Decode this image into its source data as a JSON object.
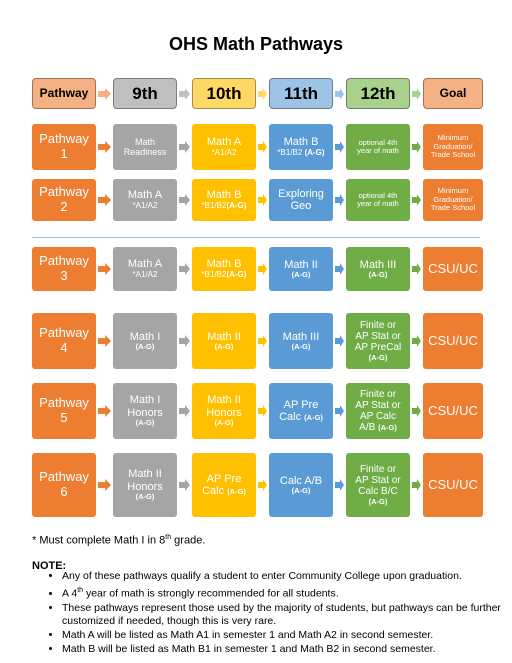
{
  "title": "OHS Math Pathways",
  "header": [
    "Pathway",
    "9th",
    "10th",
    "11th",
    "12th",
    "Goal"
  ],
  "rows": [
    {
      "pathway": [
        "Pathway",
        "1"
      ],
      "c9": {
        "main": "Math",
        "main2": "Readiness",
        "sub": "",
        "ag": ""
      },
      "c10": {
        "main": "Math A",
        "sub": "*A1/A2",
        "ag": ""
      },
      "c11": {
        "main": "Math B",
        "sub": "*B1/B2",
        "ag": "(A-G)"
      },
      "c12": {
        "main": "optional 4th",
        "main2": "year of math",
        "ag": ""
      },
      "goal": [
        "Minimum",
        "Graduation/",
        "Trade School"
      ]
    },
    {
      "pathway": [
        "Pathway",
        "2"
      ],
      "c9": {
        "main": "Math A",
        "main2": "",
        "sub": "*A1/A2",
        "ag": ""
      },
      "c10": {
        "main": "Math B",
        "sub": "*B1/B2",
        "ag": "(A-G)"
      },
      "c11": {
        "main": "Exploring",
        "main2": "Geo",
        "sub": "",
        "ag": ""
      },
      "c12": {
        "main": "optional 4th",
        "main2": "year of math",
        "ag": ""
      },
      "goal": [
        "Minimum",
        "Graduation/",
        "Trade School"
      ]
    },
    {
      "pathway": [
        "Pathway",
        "3"
      ],
      "c9": {
        "main": "Math A",
        "main2": "",
        "sub": "*A1/A2",
        "ag": ""
      },
      "c10": {
        "main": "Math B",
        "sub": "*B1/B2",
        "ag": "(A-G)"
      },
      "c11": {
        "main": "Math II",
        "ag": "(A-G)"
      },
      "c12": {
        "main": "Math III",
        "ag": "(A-G)"
      },
      "goal": [
        "CSU/UC"
      ]
    },
    {
      "pathway": [
        "Pathway",
        "4"
      ],
      "c9": {
        "main": "Math I",
        "ag": "(A-G)"
      },
      "c10": {
        "main": "Math II",
        "ag": "(A-G)"
      },
      "c11": {
        "main": "Math III",
        "ag": "(A-G)"
      },
      "c12": {
        "lines": [
          "Finite or",
          "AP Stat or",
          "AP PreCal"
        ],
        "ag": "(A-G)"
      },
      "goal": [
        "CSU/UC"
      ]
    },
    {
      "pathway": [
        "Pathway",
        "5"
      ],
      "c9": {
        "lines": [
          "Math I",
          "Honors"
        ],
        "ag": "(A-G)"
      },
      "c10": {
        "lines": [
          "Math II",
          "Honors"
        ],
        "ag": "(A-G)"
      },
      "c11": {
        "lines": [
          "AP Pre",
          "Calc"
        ],
        "ag": "(A-G)"
      },
      "c12": {
        "lines": [
          "Finite or",
          "AP Stat or",
          "AP Calc",
          "A/B"
        ],
        "ag": "(A-G)"
      },
      "goal": [
        "CSU/UC"
      ]
    },
    {
      "pathway": [
        "Pathway",
        "6"
      ],
      "c9": {
        "lines": [
          "Math II",
          "Honors"
        ],
        "ag": "(A-G)"
      },
      "c10": {
        "lines": [
          "AP Pre",
          "Calc"
        ],
        "ag": "(A-G)"
      },
      "c11": {
        "lines": [
          "Calc A/B"
        ],
        "ag": "(A-G)"
      },
      "c12": {
        "lines": [
          "Finite or",
          "AP Stat or",
          "Calc B/C"
        ],
        "ag": "(A-G)"
      },
      "goal": [
        "CSU/UC"
      ]
    }
  ],
  "footnote": {
    "pre": "* Must complete Math I in 8",
    "sup": "th",
    "post": " grade."
  },
  "note_heading": "NOTE:",
  "notes": [
    "Any of these pathways qualify a student to enter Community College upon graduation.",
    {
      "pre": "A 4",
      "sup": "th",
      "post": " year of math is strongly recommended for all students."
    },
    "These pathways represent those used by the majority of students, but pathways can be further customized if needed, though this is very rare.",
    "Math A will be listed as Math A1 in semester 1 and Math A2 in second semester.",
    "Math B will be listed as Math B1 in semester 1 and Math B2 in second semester."
  ]
}
